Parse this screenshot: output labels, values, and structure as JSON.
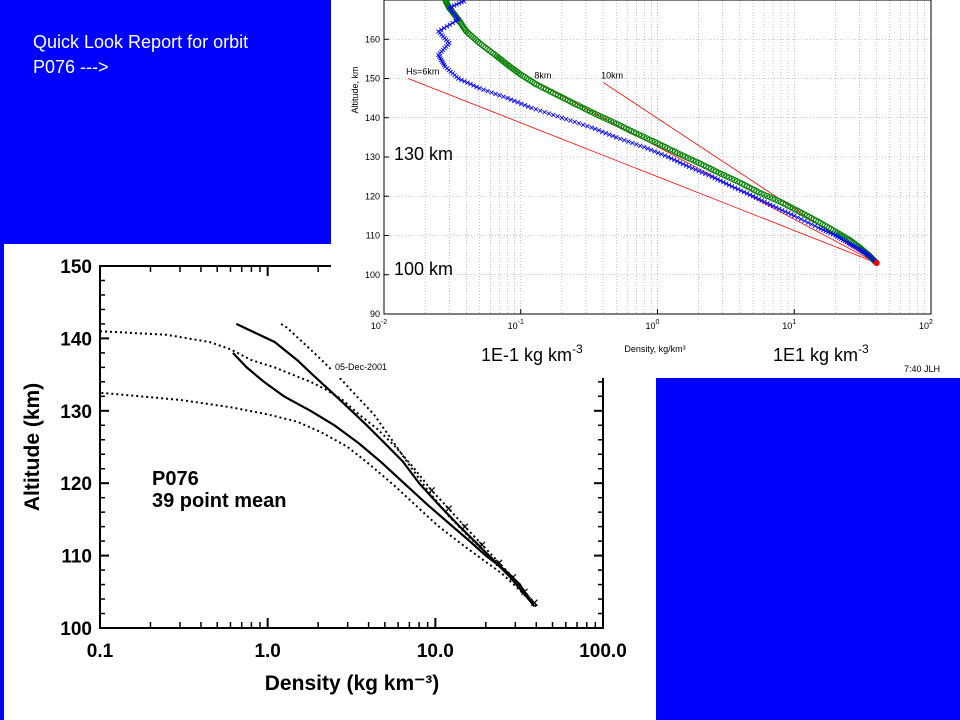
{
  "slide": {
    "intro_text": "Quick Look Report for orbit P076 --->",
    "background_color": "#0000ff"
  },
  "chart_data": [
    {
      "id": "p076-mean",
      "type": "line",
      "title": "",
      "annotation": [
        "P076",
        "39 point mean"
      ],
      "xlabel": "Density (kg km⁻³)",
      "ylabel": "Altitude (km)",
      "xscale": "log",
      "xlim": [
        0.1,
        100
      ],
      "ylim": [
        100,
        150
      ],
      "x_ticks": [
        0.1,
        1.0,
        10.0,
        100.0
      ],
      "x_tick_labels": [
        "0.1",
        "1.0",
        "10.0",
        "100.0"
      ],
      "y_ticks": [
        100,
        110,
        120,
        130,
        140,
        150
      ],
      "y_tick_labels": [
        "100",
        "110",
        "120",
        "130",
        "140",
        "150"
      ],
      "series": [
        {
          "style": "solid",
          "color": "#000000",
          "points": [
            [
              39,
              103
            ],
            [
              36,
              104
            ],
            [
              32,
              106
            ],
            [
              26,
              108
            ],
            [
              20,
              110
            ],
            [
              16,
              112
            ],
            [
              12,
              114.5
            ],
            [
              9,
              117
            ],
            [
              6.5,
              120
            ],
            [
              4.7,
              123
            ],
            [
              3.5,
              125.5
            ],
            [
              2.5,
              128
            ],
            [
              1.8,
              130
            ],
            [
              1.25,
              132
            ],
            [
              0.95,
              134
            ],
            [
              0.75,
              136
            ],
            [
              0.62,
              138
            ]
          ]
        },
        {
          "style": "solid",
          "color": "#000000",
          "points": [
            [
              39,
              103
            ],
            [
              36,
              104
            ],
            [
              33,
              105
            ],
            [
              28,
              107
            ],
            [
              23,
              109
            ],
            [
              18,
              111.5
            ],
            [
              14,
              114
            ],
            [
              10.5,
              117
            ],
            [
              8,
              120
            ],
            [
              6.4,
              123
            ],
            [
              5,
              125.5
            ],
            [
              3.9,
              128
            ],
            [
              3.0,
              130.5
            ],
            [
              2.3,
              133
            ],
            [
              1.85,
              135
            ],
            [
              1.5,
              137
            ],
            [
              1.1,
              139.5
            ],
            [
              0.65,
              142
            ]
          ]
        },
        {
          "style": "dotted",
          "color": "#000000",
          "points": [
            [
              40,
              103
            ],
            [
              36,
              104
            ],
            [
              31,
              105.5
            ],
            [
              25,
              107.5
            ],
            [
              19,
              109.5
            ],
            [
              14.5,
              111.5
            ],
            [
              10.5,
              114
            ],
            [
              8,
              116.5
            ],
            [
              5.8,
              119.5
            ],
            [
              4.1,
              122.5
            ],
            [
              3.0,
              125
            ],
            [
              2.1,
              127
            ],
            [
              1.5,
              128.5
            ],
            [
              1.0,
              129.5
            ],
            [
              0.6,
              130.5
            ],
            [
              0.3,
              131.5
            ],
            [
              0.1,
              132.5
            ]
          ]
        },
        {
          "style": "dotted",
          "color": "#000000",
          "points": [
            [
              40,
              103
            ],
            [
              37,
              104
            ],
            [
              33,
              105.5
            ],
            [
              27,
              107.5
            ],
            [
              21,
              110
            ],
            [
              16,
              112.5
            ],
            [
              12,
              115.5
            ],
            [
              9,
              119
            ],
            [
              7,
              122.5
            ],
            [
              5.5,
              126
            ],
            [
              4.3,
              129.5
            ],
            [
              3.4,
              132
            ],
            [
              2.7,
              134.5
            ],
            [
              2.1,
              137
            ],
            [
              1.7,
              139
            ],
            [
              1.3,
              141.5
            ],
            [
              1.2,
              142
            ]
          ]
        },
        {
          "style": "dotted",
          "color": "#000000",
          "points": [
            [
              0.1,
              141
            ],
            [
              0.25,
              140.5
            ],
            [
              0.45,
              139.5
            ],
            [
              0.6,
              138.5
            ],
            [
              0.8,
              137
            ],
            [
              1.1,
              136
            ],
            [
              1.4,
              135
            ],
            [
              1.8,
              134
            ],
            [
              2.2,
              133
            ],
            [
              2.8,
              131.5
            ],
            [
              3.5,
              129.5
            ],
            [
              4.5,
              127.5
            ],
            [
              5.8,
              125
            ],
            [
              7.5,
              122
            ],
            [
              9.5,
              119
            ],
            [
              12,
              116.5
            ],
            [
              15,
              114
            ],
            [
              19,
              111.5
            ],
            [
              24,
              109
            ],
            [
              29,
              107
            ],
            [
              34,
              105
            ],
            [
              39,
              103.5
            ]
          ]
        }
      ]
    },
    {
      "id": "quick-look",
      "type": "scatter",
      "title": "",
      "xlabel": "Density, kg/km³",
      "ylabel": "Altitude, km",
      "xscale": "log",
      "xlim": [
        0.01,
        100
      ],
      "ylim": [
        90,
        170
      ],
      "x_ticks": [
        0.01,
        0.1,
        1,
        10,
        100
      ],
      "y_ticks": [
        90,
        100,
        110,
        120,
        130,
        140,
        150,
        160
      ],
      "y_tick_labels": [
        "90",
        "100",
        "110",
        "120",
        "130",
        "140",
        "150",
        "160"
      ],
      "grid": true,
      "series": [
        {
          "marker": "x",
          "color": "#0000ff",
          "points": [
            [
              40,
              103
            ],
            [
              35,
              105
            ],
            [
              30,
              106.5
            ],
            [
              25,
              108
            ],
            [
              20,
              110
            ],
            [
              15,
              112
            ],
            [
              10,
              115
            ],
            [
              7,
              117.5
            ],
            [
              5,
              120
            ],
            [
              3.5,
              122.5
            ],
            [
              2.5,
              125
            ],
            [
              1.7,
              127.5
            ],
            [
              1.2,
              130
            ],
            [
              0.8,
              132.5
            ],
            [
              0.5,
              135
            ],
            [
              0.33,
              137.5
            ],
            [
              0.2,
              140
            ],
            [
              0.12,
              142.5
            ],
            [
              0.08,
              145
            ],
            [
              0.05,
              147.5
            ],
            [
              0.035,
              150
            ],
            [
              0.028,
              153
            ],
            [
              0.025,
              156
            ],
            [
              0.03,
              159
            ],
            [
              0.025,
              162
            ],
            [
              0.035,
              165
            ],
            [
              0.03,
              168
            ],
            [
              0.04,
              170
            ]
          ]
        },
        {
          "marker": "o",
          "color": "#008000",
          "points": [
            [
              40,
              103
            ],
            [
              35,
              105
            ],
            [
              30,
              107
            ],
            [
              25,
              109
            ],
            [
              20,
              111
            ],
            [
              15,
              113.5
            ],
            [
              11,
              116
            ],
            [
              8,
              118.5
            ],
            [
              5.5,
              121
            ],
            [
              4,
              123.5
            ],
            [
              2.8,
              126
            ],
            [
              2,
              128.5
            ],
            [
              1.4,
              131
            ],
            [
              1,
              133.5
            ],
            [
              0.7,
              136
            ],
            [
              0.5,
              138.5
            ],
            [
              0.35,
              141
            ],
            [
              0.25,
              143.5
            ],
            [
              0.18,
              146
            ],
            [
              0.13,
              148.5
            ],
            [
              0.1,
              151
            ],
            [
              0.08,
              153.5
            ],
            [
              0.065,
              156
            ],
            [
              0.05,
              159
            ],
            [
              0.04,
              162
            ],
            [
              0.035,
              165
            ],
            [
              0.03,
              168
            ],
            [
              0.028,
              170
            ]
          ]
        },
        {
          "type": "reference_lines",
          "color": "#ff0000",
          "lines": [
            {
              "label": "Hs=6km",
              "points": [
                [
                  40,
                  103
                ],
                [
                  0.015,
                  150
                ]
              ]
            },
            {
              "label": "8km",
              "points": [
                [
                  40,
                  103
                ],
                [
                  0.13,
                  149
                ]
              ]
            },
            {
              "label": "10km",
              "points": [
                [
                  40,
                  103
                ],
                [
                  0.4,
                  149
                ]
              ]
            }
          ]
        }
      ]
    }
  ],
  "left_chart": {
    "date_text": "05-Dec-2001"
  },
  "right_chart": {
    "overlay_labels": [
      "130 km",
      "100 km"
    ],
    "bottom_label_left": "1E-1 kg km",
    "bottom_label_right": "1E1 kg km",
    "superscript": "-3",
    "x_tick_bases": [
      "10",
      "10",
      "10",
      "10",
      "10"
    ],
    "x_tick_exps": [
      "-2",
      "-1",
      "0",
      "1",
      "2"
    ],
    "footer_text": "7:40 JLH"
  }
}
